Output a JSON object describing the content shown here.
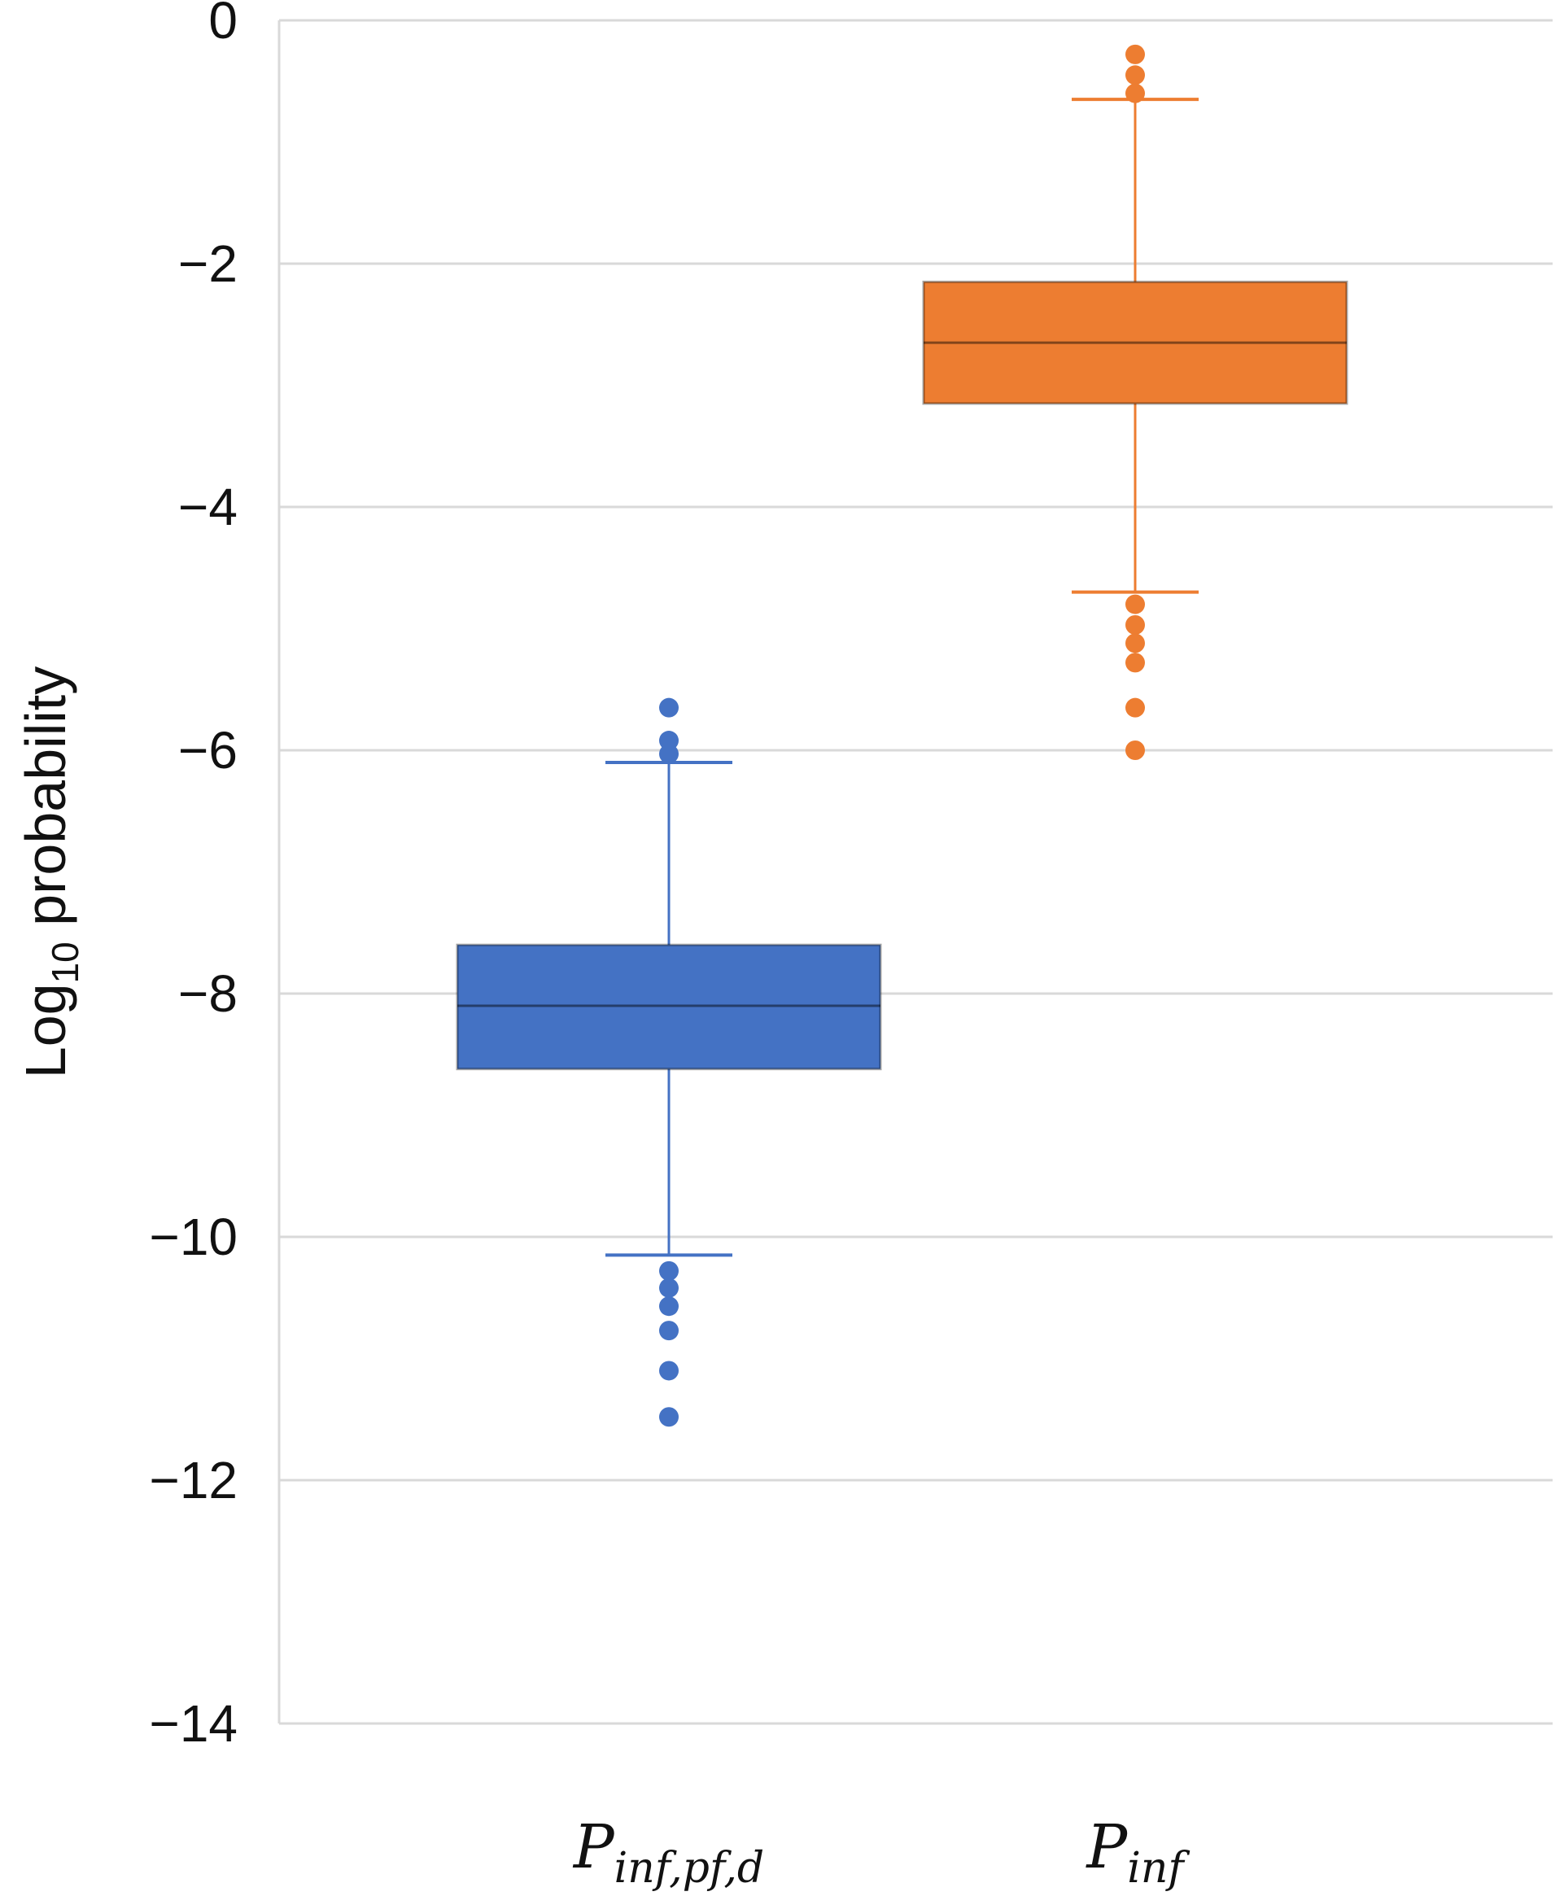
{
  "chart_data": {
    "type": "box",
    "title": "",
    "xlabel": "",
    "ylabel": {
      "main": "Log",
      "subscript": "10",
      "rest": " probability"
    },
    "ylim": [
      -14,
      0
    ],
    "yticks": [
      0,
      -2,
      -4,
      -6,
      -8,
      -10,
      -12,
      -14
    ],
    "ytick_labels": [
      "0",
      "−2",
      "−4",
      "−6",
      "−8",
      "−10",
      "−12",
      "−14"
    ],
    "grid": true,
    "series": [
      {
        "name": "P_inf,pf,d",
        "label": {
          "main": "P",
          "subscript": "inf,pf,d"
        },
        "color": "#4472C4",
        "whisker_low": -10.15,
        "q1": -8.62,
        "median": -8.1,
        "q3": -7.6,
        "whisker_high": -6.1,
        "outliers": [
          -5.65,
          -5.92,
          -6.03,
          -10.28,
          -10.42,
          -10.57,
          -10.77,
          -11.1,
          -11.48
        ]
      },
      {
        "name": "P_inf",
        "label": {
          "main": "P",
          "subscript": "inf"
        },
        "color": "#ED7D31",
        "whisker_low": -4.7,
        "q1": -3.15,
        "median": -2.65,
        "q3": -2.15,
        "whisker_high": -0.65,
        "outliers": [
          -0.28,
          -0.45,
          -0.6,
          -4.8,
          -4.97,
          -5.12,
          -5.28,
          -5.65,
          -6.0
        ]
      }
    ]
  }
}
